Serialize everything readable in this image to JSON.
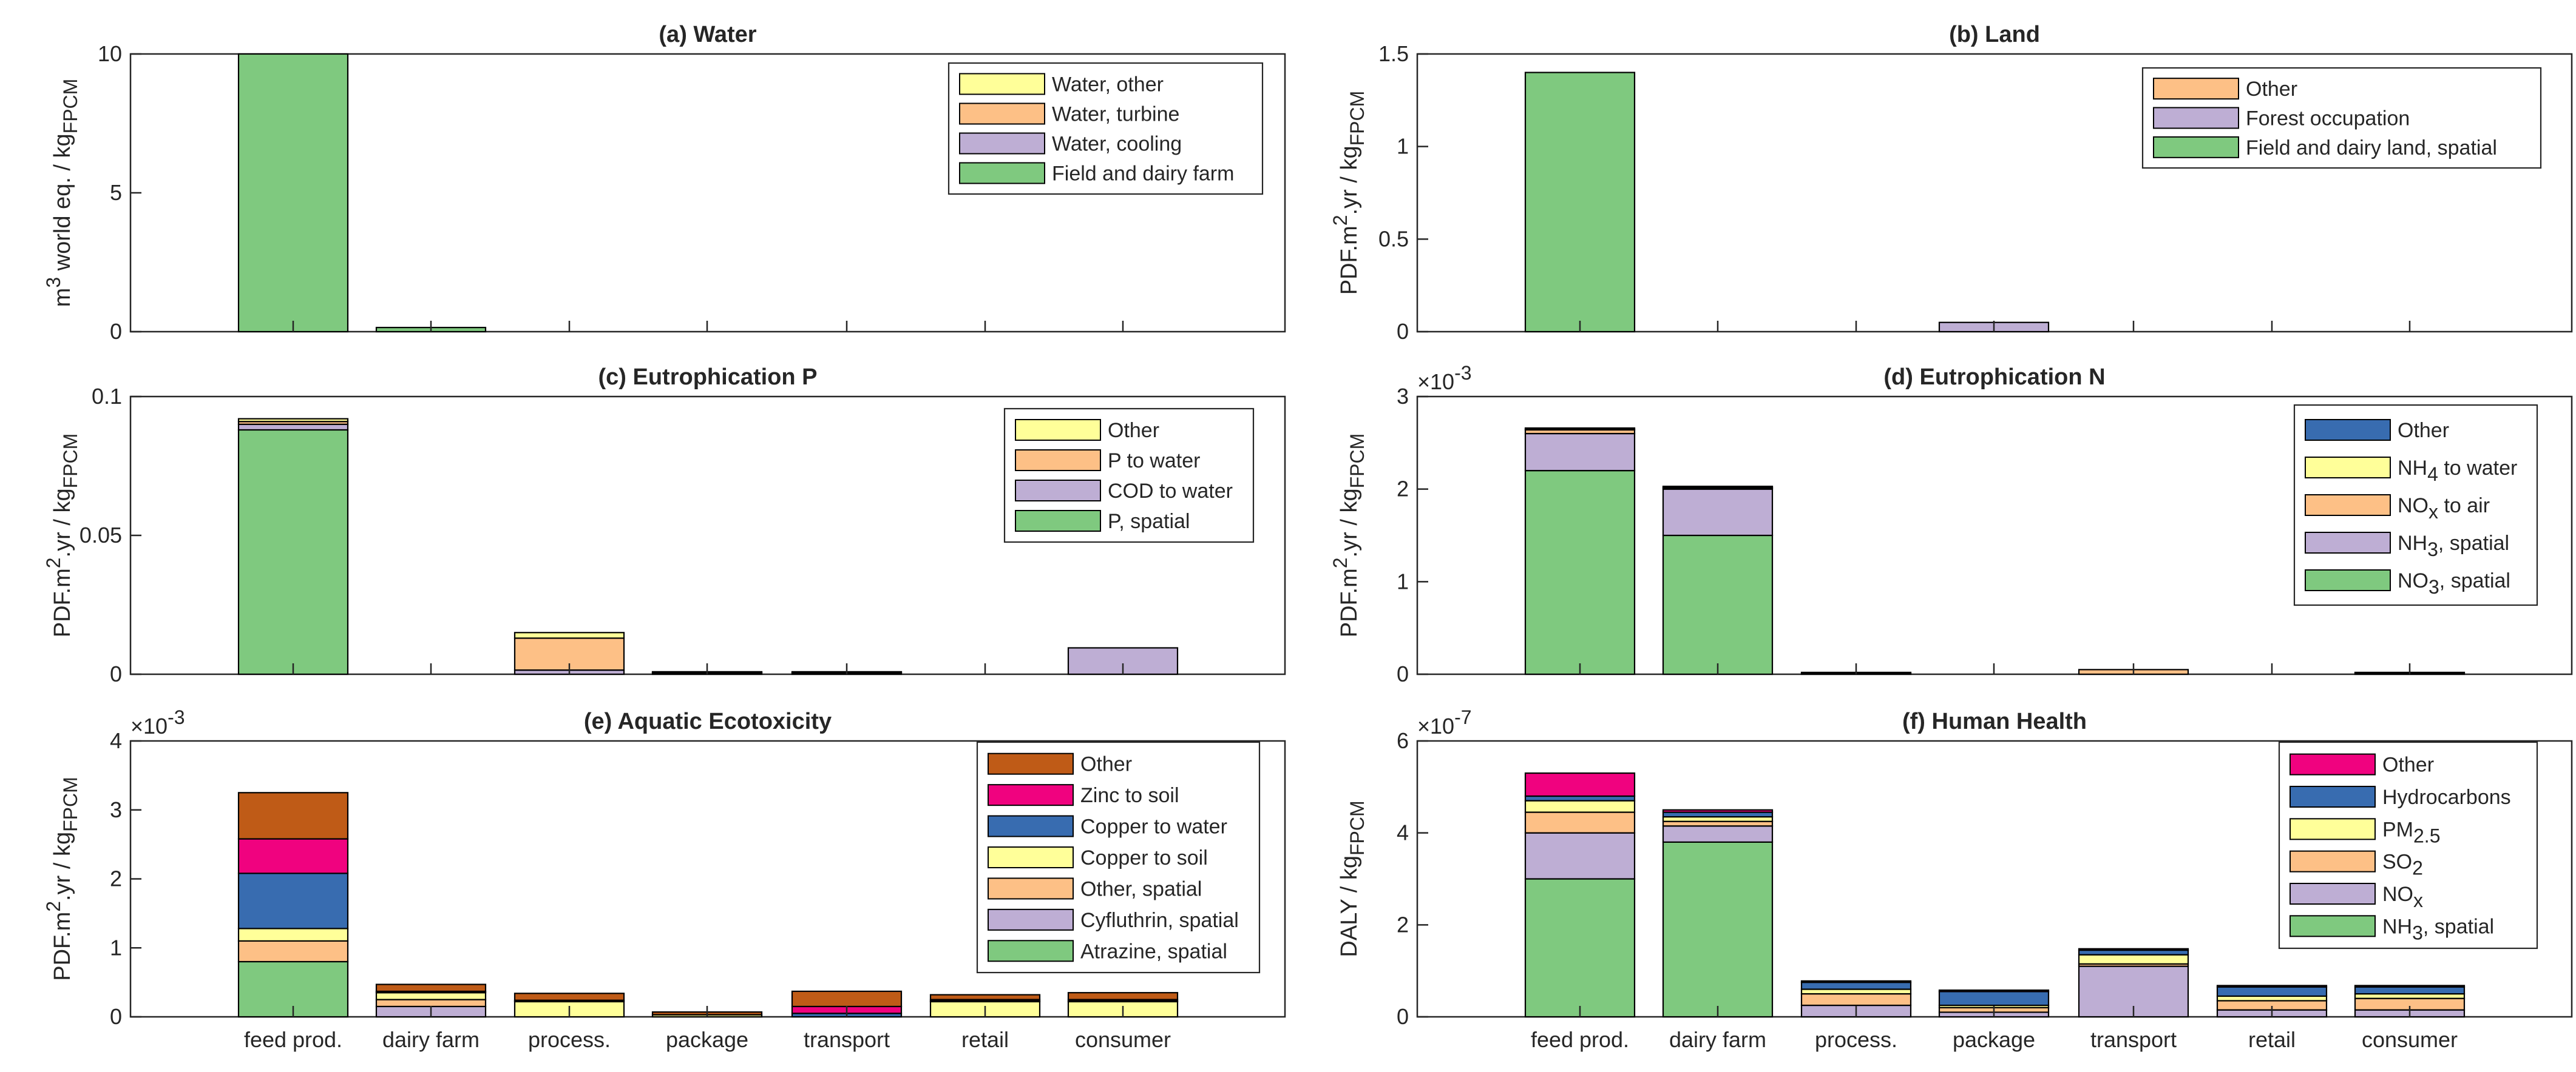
{
  "categories": [
    "feed prod.",
    "dairy farm",
    "process.",
    "package",
    "transport",
    "retail",
    "consumer"
  ],
  "colors": {
    "green": "#7fc97f",
    "lilac": "#beaed4",
    "peach": "#fdc086",
    "yellow": "#ffff99",
    "blue": "#386cb0",
    "magenta": "#f0027f",
    "rust": "#bf5b17"
  },
  "chart_data": [
    {
      "type": "bar",
      "stacked": true,
      "title": "(a) Water",
      "ylabel": {
        "pre": "m",
        "sup1": "3",
        "mid": " world eq. / kg",
        "sub1": "FPCM",
        "mid2": "",
        "sub2": "",
        "post": ""
      },
      "ylim": [
        0,
        10
      ],
      "yticks": [
        "0",
        "5",
        "10"
      ],
      "ytick_values": [
        0,
        5,
        10
      ],
      "exponent": "",
      "show_xlabels": false,
      "series": [
        {
          "name": "Field and dairy farm",
          "color": "#7fc97f",
          "values": [
            10.0,
            0.15,
            0,
            0,
            0,
            0,
            0
          ]
        },
        {
          "name": "Water, cooling",
          "color": "#beaed4",
          "values": [
            0,
            0,
            0,
            0,
            0,
            0,
            0
          ]
        },
        {
          "name": "Water, turbine",
          "color": "#fdc086",
          "values": [
            0,
            0,
            0,
            0,
            0,
            0,
            0
          ]
        },
        {
          "name": "Water, other",
          "color": "#ffff99",
          "values": [
            0,
            0,
            0,
            0,
            0,
            0,
            0
          ]
        }
      ],
      "legend": [
        {
          "pre": "Water, other",
          "sub": "",
          "post": "",
          "color": "#ffff99"
        },
        {
          "pre": "Water, turbine",
          "sub": "",
          "post": "",
          "color": "#fdc086"
        },
        {
          "pre": "Water, cooling",
          "sub": "",
          "post": "",
          "color": "#beaed4"
        },
        {
          "pre": "Field and dairy farm",
          "sub": "",
          "post": "",
          "color": "#7fc97f"
        }
      ],
      "legend_position": "top-right"
    },
    {
      "type": "bar",
      "stacked": true,
      "title": "(b) Land",
      "ylabel": {
        "pre": "PDF.m",
        "sup1": "2",
        "mid": ".yr / kg",
        "sub1": "FPCM",
        "mid2": "",
        "sub2": "",
        "post": ""
      },
      "ylim": [
        0,
        1.5
      ],
      "yticks": [
        "0",
        "0.5",
        "1",
        "1.5"
      ],
      "ytick_values": [
        0,
        0.5,
        1,
        1.5
      ],
      "exponent": "",
      "show_xlabels": false,
      "series": [
        {
          "name": "Field and dairy land, spatial",
          "color": "#7fc97f",
          "values": [
            1.4,
            0,
            0,
            0,
            0,
            0,
            0
          ]
        },
        {
          "name": "Forest occupation",
          "color": "#beaed4",
          "values": [
            0,
            0,
            0,
            0.05,
            0,
            0,
            0
          ]
        },
        {
          "name": "Other",
          "color": "#fdc086",
          "values": [
            0,
            0,
            0,
            0,
            0,
            0,
            0
          ]
        }
      ],
      "legend": [
        {
          "pre": "Other",
          "sub": "",
          "post": "",
          "color": "#fdc086"
        },
        {
          "pre": "Forest occupation",
          "sub": "",
          "post": "",
          "color": "#beaed4"
        },
        {
          "pre": "Field and dairy land, spatial",
          "sub": "",
          "post": "",
          "color": "#7fc97f"
        }
      ],
      "legend_position": "top-right"
    },
    {
      "type": "bar",
      "stacked": true,
      "title": "(c) Eutrophication P",
      "ylabel": {
        "pre": "PDF.m",
        "sup1": "2",
        "mid": ".yr / kg",
        "sub1": "FPCM",
        "mid2": "",
        "sub2": "",
        "post": ""
      },
      "ylim": [
        0,
        0.1
      ],
      "yticks": [
        "0",
        "0.05",
        "0.1"
      ],
      "ytick_values": [
        0,
        0.05,
        0.1
      ],
      "exponent": "",
      "show_xlabels": false,
      "series": [
        {
          "name": "P, spatial",
          "color": "#7fc97f",
          "values": [
            0.088,
            0,
            0,
            0,
            0,
            0,
            0
          ]
        },
        {
          "name": "COD to water",
          "color": "#beaed4",
          "values": [
            0.002,
            0,
            0.0015,
            0.0005,
            0.0005,
            0,
            0.0095
          ]
        },
        {
          "name": "P to water",
          "color": "#fdc086",
          "values": [
            0.001,
            0,
            0.0115,
            0.0002,
            0.0002,
            0,
            0
          ]
        },
        {
          "name": "Other",
          "color": "#ffff99",
          "values": [
            0.001,
            0,
            0.002,
            0.0002,
            0.0002,
            0,
            0
          ]
        }
      ],
      "legend": [
        {
          "pre": "Other",
          "sub": "",
          "post": "",
          "color": "#ffff99"
        },
        {
          "pre": "P to water",
          "sub": "",
          "post": "",
          "color": "#fdc086"
        },
        {
          "pre": "COD to water",
          "sub": "",
          "post": "",
          "color": "#beaed4"
        },
        {
          "pre": "P, spatial",
          "sub": "",
          "post": "",
          "color": "#7fc97f"
        }
      ],
      "legend_position": "top-right"
    },
    {
      "type": "bar",
      "stacked": true,
      "title": "(d) Eutrophication N",
      "ylabel": {
        "pre": "PDF.m",
        "sup1": "2",
        "mid": ".yr / kg",
        "sub1": "FPCM",
        "mid2": "",
        "sub2": "",
        "post": ""
      },
      "ylim": [
        0,
        3
      ],
      "yticks": [
        "0",
        "1",
        "2",
        "3"
      ],
      "ytick_values": [
        0,
        1,
        2,
        3
      ],
      "exponent": "-3",
      "show_xlabels": false,
      "series": [
        {
          "name": "NO3, spatial",
          "color": "#7fc97f",
          "values": [
            2.2,
            1.5,
            0,
            0,
            0,
            0,
            0
          ]
        },
        {
          "name": "NH3, spatial",
          "color": "#beaed4",
          "values": [
            0.4,
            0.5,
            0,
            0,
            0,
            0,
            0
          ]
        },
        {
          "name": "NOx to air",
          "color": "#fdc086",
          "values": [
            0.04,
            0.01,
            0.01,
            0,
            0.05,
            0,
            0.01
          ]
        },
        {
          "name": "NH4 to water",
          "color": "#ffff99",
          "values": [
            0.01,
            0.01,
            0.01,
            0,
            0,
            0,
            0.01
          ]
        },
        {
          "name": "Other",
          "color": "#386cb0",
          "values": [
            0.01,
            0.01,
            0,
            0,
            0,
            0,
            0
          ]
        }
      ],
      "legend": [
        {
          "pre": "Other",
          "sub": "",
          "post": "",
          "color": "#386cb0"
        },
        {
          "pre": "NH",
          "sub": "4",
          "post": " to water",
          "color": "#ffff99"
        },
        {
          "pre": "NO",
          "sub": "x",
          "post": " to air",
          "color": "#fdc086"
        },
        {
          "pre": "NH",
          "sub": "3",
          "post": ", spatial",
          "color": "#beaed4"
        },
        {
          "pre": "NO",
          "sub": "3",
          "post": ", spatial",
          "color": "#7fc97f"
        }
      ],
      "legend_position": "top-right"
    },
    {
      "type": "bar",
      "stacked": true,
      "title": "(e) Aquatic Ecotoxicity",
      "ylabel": {
        "pre": "PDF.m",
        "sup1": "2",
        "mid": ".yr / kg",
        "sub1": "FPCM",
        "mid2": "",
        "sub2": "",
        "post": ""
      },
      "ylim": [
        0,
        4
      ],
      "yticks": [
        "0",
        "1",
        "2",
        "3",
        "4"
      ],
      "ytick_values": [
        0,
        1,
        2,
        3,
        4
      ],
      "exponent": "-3",
      "show_xlabels": true,
      "series": [
        {
          "name": "Atrazine, spatial",
          "color": "#7fc97f",
          "values": [
            0.8,
            0,
            0,
            0,
            0,
            0,
            0
          ]
        },
        {
          "name": "Cyfluthrin, spatial",
          "color": "#beaed4",
          "values": [
            0,
            0.15,
            0,
            0,
            0,
            0,
            0
          ]
        },
        {
          "name": "Other, spatial",
          "color": "#fdc086",
          "values": [
            0.3,
            0.1,
            0,
            0,
            0,
            0,
            0
          ]
        },
        {
          "name": "Copper to soil",
          "color": "#ffff99",
          "values": [
            0.18,
            0.1,
            0.22,
            0.03,
            0,
            0.22,
            0.22
          ]
        },
        {
          "name": "Copper to water",
          "color": "#386cb0",
          "values": [
            0.8,
            0.01,
            0.01,
            0,
            0.05,
            0.01,
            0.01
          ]
        },
        {
          "name": "Zinc to soil",
          "color": "#f0027f",
          "values": [
            0.5,
            0.01,
            0.01,
            0,
            0.1,
            0.02,
            0.02
          ]
        },
        {
          "name": "Other",
          "color": "#bf5b17",
          "values": [
            0.67,
            0.1,
            0.1,
            0.04,
            0.22,
            0.07,
            0.1
          ]
        }
      ],
      "legend": [
        {
          "pre": "Other",
          "sub": "",
          "post": "",
          "color": "#bf5b17"
        },
        {
          "pre": "Zinc to soil",
          "sub": "",
          "post": "",
          "color": "#f0027f"
        },
        {
          "pre": "Copper to water",
          "sub": "",
          "post": "",
          "color": "#386cb0"
        },
        {
          "pre": "Copper to soil",
          "sub": "",
          "post": "",
          "color": "#ffff99"
        },
        {
          "pre": "Other, spatial",
          "sub": "",
          "post": "",
          "color": "#fdc086"
        },
        {
          "pre": "Cyfluthrin, spatial",
          "sub": "",
          "post": "",
          "color": "#beaed4"
        },
        {
          "pre": "Atrazine, spatial",
          "sub": "",
          "post": "",
          "color": "#7fc97f"
        }
      ],
      "legend_position": "top-right"
    },
    {
      "type": "bar",
      "stacked": true,
      "title": "(f) Human Health",
      "ylabel": {
        "pre": "DALY / kg",
        "sup1": "",
        "mid": "",
        "sub1": "FPCM",
        "mid2": "",
        "sub2": "",
        "post": ""
      },
      "ylim": [
        0,
        6
      ],
      "yticks": [
        "0",
        "2",
        "4",
        "6"
      ],
      "ytick_values": [
        0,
        2,
        4,
        6
      ],
      "exponent": "-7",
      "show_xlabels": true,
      "series": [
        {
          "name": "NH3, spatial",
          "color": "#7fc97f",
          "values": [
            3.0,
            3.8,
            0,
            0,
            0,
            0,
            0
          ]
        },
        {
          "name": "NOx",
          "color": "#beaed4",
          "values": [
            1.0,
            0.35,
            0.25,
            0.1,
            1.1,
            0.15,
            0.15
          ]
        },
        {
          "name": "SO2",
          "color": "#fdc086",
          "values": [
            0.45,
            0.1,
            0.25,
            0.1,
            0.05,
            0.2,
            0.25
          ]
        },
        {
          "name": "PM2.5",
          "color": "#ffff99",
          "values": [
            0.25,
            0.1,
            0.1,
            0.05,
            0.2,
            0.1,
            0.1
          ]
        },
        {
          "name": "Hydrocarbons",
          "color": "#386cb0",
          "values": [
            0.1,
            0.1,
            0.15,
            0.3,
            0.1,
            0.2,
            0.15
          ]
        },
        {
          "name": "Other",
          "color": "#f0027f",
          "values": [
            0.5,
            0.05,
            0.03,
            0.03,
            0.03,
            0.03,
            0.03
          ]
        }
      ],
      "legend": [
        {
          "pre": "Other",
          "sub": "",
          "post": "",
          "color": "#f0027f"
        },
        {
          "pre": "Hydrocarbons",
          "sub": "",
          "post": "",
          "color": "#386cb0"
        },
        {
          "pre": "PM",
          "sub": "2.5",
          "post": "",
          "color": "#ffff99"
        },
        {
          "pre": "SO",
          "sub": "2",
          "post": "",
          "color": "#fdc086"
        },
        {
          "pre": "NO",
          "sub": "x",
          "post": "",
          "color": "#beaed4"
        },
        {
          "pre": "NH",
          "sub": "3",
          "post": ", spatial",
          "color": "#7fc97f"
        }
      ],
      "legend_position": "top-right"
    }
  ]
}
